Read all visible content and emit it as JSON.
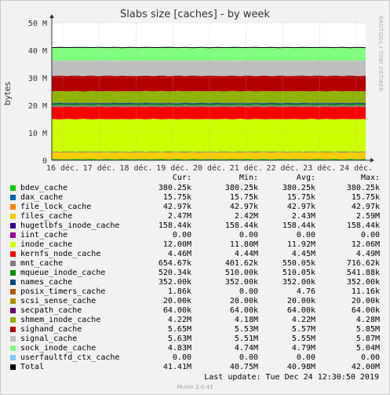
{
  "chart_data": {
    "type": "area",
    "title": "Slabs size [caches] - by week",
    "ylabel": "bytes",
    "ylim": [
      0,
      50000000
    ],
    "yticks": [
      "0",
      "10 M",
      "20 M",
      "30 M",
      "40 M",
      "50 M"
    ],
    "xticks": [
      "16 déc.",
      "17 déc.",
      "18 déc.",
      "19 déc.",
      "20 déc.",
      "21 déc.",
      "22 déc.",
      "23 déc.",
      "24 déc."
    ],
    "grid": true,
    "stacking_order_bottom_to_top": [
      "bdev_cache",
      "dax_cache",
      "file_lock_cache",
      "files_cache",
      "hugetlbfs_inode_cache",
      "iint_cache",
      "inode_cache",
      "kernfs_node_cache",
      "mnt_cache",
      "mqueue_inode_cache",
      "names_cache",
      "posix_timers_cache",
      "scsi_sense_cache",
      "secpath_cache",
      "shmem_inode_cache",
      "sighand_cache",
      "signal_cache",
      "sock_inode_cache",
      "userfaultfd_ctx_cache"
    ],
    "series": [
      {
        "name": "bdev_cache",
        "color": "#00cc00",
        "cur": "380.25k",
        "min": "380.25k",
        "avg": "380.25k",
        "max": "380.25k",
        "value": 380250
      },
      {
        "name": "dax_cache",
        "color": "#0066b3",
        "cur": "15.75k",
        "min": "15.75k",
        "avg": "15.75k",
        "max": "15.75k",
        "value": 15750
      },
      {
        "name": "file_lock_cache",
        "color": "#ff8000",
        "cur": "42.97k",
        "min": "42.97k",
        "avg": "42.97k",
        "max": "42.97k",
        "value": 42970
      },
      {
        "name": "files_cache",
        "color": "#ffcc00",
        "cur": "2.47M",
        "min": "2.42M",
        "avg": "2.43M",
        "max": "2.59M",
        "value": 2430000
      },
      {
        "name": "hugetlbfs_inode_cache",
        "color": "#330099",
        "cur": "158.44k",
        "min": "158.44k",
        "avg": "158.44k",
        "max": "158.44k",
        "value": 158440
      },
      {
        "name": "iint_cache",
        "color": "#990099",
        "cur": "0.00",
        "min": "0.00",
        "avg": "0.00",
        "max": "0.00",
        "value": 0
      },
      {
        "name": "inode_cache",
        "color": "#ccff00",
        "cur": "12.00M",
        "min": "11.80M",
        "avg": "11.92M",
        "max": "12.06M",
        "value": 11920000
      },
      {
        "name": "kernfs_node_cache",
        "color": "#ff0000",
        "cur": "4.46M",
        "min": "4.44M",
        "avg": "4.45M",
        "max": "4.49M",
        "value": 4450000
      },
      {
        "name": "mnt_cache",
        "color": "#808080",
        "cur": "654.67k",
        "min": "401.62k",
        "avg": "550.05k",
        "max": "716.62k",
        "value": 550050
      },
      {
        "name": "mqueue_inode_cache",
        "color": "#008f00",
        "cur": "520.34k",
        "min": "510.00k",
        "avg": "510.05k",
        "max": "541.88k",
        "value": 510050
      },
      {
        "name": "names_cache",
        "color": "#00487d",
        "cur": "352.00k",
        "min": "352.00k",
        "avg": "352.00k",
        "max": "352.00k",
        "value": 352000
      },
      {
        "name": "posix_timers_cache",
        "color": "#b35a00",
        "cur": "1.86k",
        "min": "0.00",
        "avg": "4.76",
        "max": "11.16k",
        "value": 5
      },
      {
        "name": "scsi_sense_cache",
        "color": "#b38f00",
        "cur": "20.00k",
        "min": "20.00k",
        "avg": "20.00k",
        "max": "20.00k",
        "value": 20000
      },
      {
        "name": "secpath_cache",
        "color": "#6b006b",
        "cur": "64.00k",
        "min": "64.00k",
        "avg": "64.00k",
        "max": "64.00k",
        "value": 64000
      },
      {
        "name": "shmem_inode_cache",
        "color": "#8fb300",
        "cur": "4.22M",
        "min": "4.18M",
        "avg": "4.22M",
        "max": "4.28M",
        "value": 4220000
      },
      {
        "name": "sighand_cache",
        "color": "#b30000",
        "cur": "5.65M",
        "min": "5.53M",
        "avg": "5.57M",
        "max": "5.85M",
        "value": 5570000
      },
      {
        "name": "signal_cache",
        "color": "#bebebe",
        "cur": "5.63M",
        "min": "5.51M",
        "avg": "5.55M",
        "max": "5.87M",
        "value": 5550000
      },
      {
        "name": "sock_inode_cache",
        "color": "#80ff80",
        "cur": "4.83M",
        "min": "4.74M",
        "avg": "4.79M",
        "max": "5.04M",
        "value": 4790000
      },
      {
        "name": "userfaultfd_ctx_cache",
        "color": "#80c9ff",
        "cur": "0.00",
        "min": "0.00",
        "avg": "0.00",
        "max": "0.00",
        "value": 0
      }
    ],
    "total": {
      "name": "Total",
      "color": "#000000",
      "cur": "41.41M",
      "min": "40.75M",
      "avg": "40.98M",
      "max": "42.00M"
    }
  },
  "legend_headers": {
    "cur": "Cur:",
    "min": "Min:",
    "avg": "Avg:",
    "max": "Max:"
  },
  "last_update": "Last update: Tue Dec 24 12:30:50 2019",
  "footer": "Munin 2.0.43",
  "side_text": "RRDTOOL / TOBI OETIKER"
}
